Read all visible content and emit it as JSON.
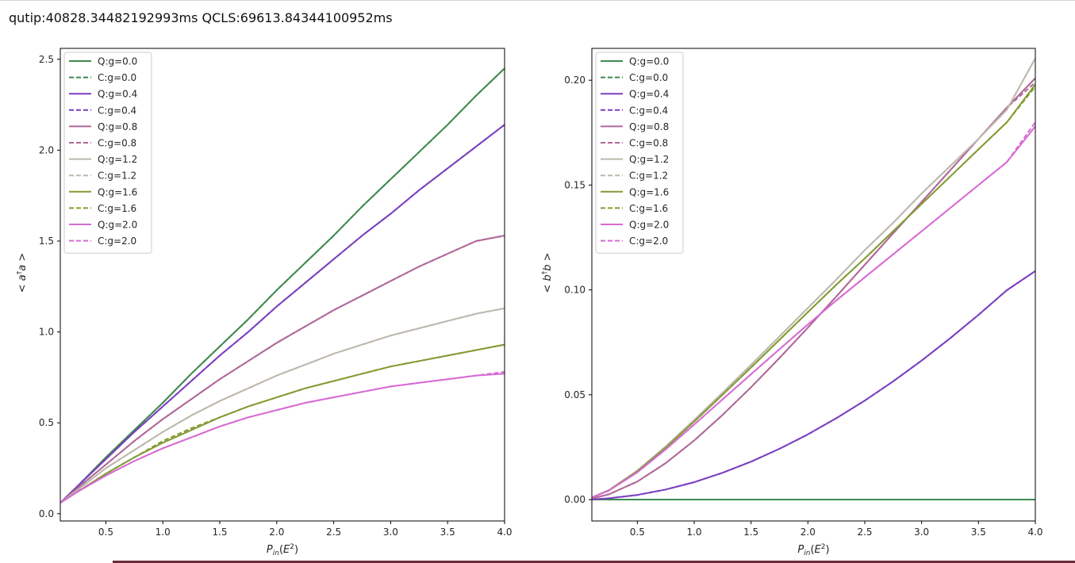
{
  "timing_text": "qutip:40828.34482192993ms  QCLS:69613.84344100952ms",
  "colors": {
    "g0": "#3f8a4f",
    "g04": "#7b3fc0",
    "g08": "#b06797",
    "g12": "#bdb8ac",
    "g16": "#839b33",
    "g20": "#d76bd3"
  },
  "chart_data": [
    {
      "type": "line",
      "xlabel": "P_in(E^2)",
      "ylabel": "<a†a>",
      "xlim": [
        0.1,
        4.0
      ],
      "ylim": [
        -0.04,
        2.56
      ],
      "xticks": [
        "0.5",
        "1.0",
        "1.5",
        "2.0",
        "2.5",
        "3.0",
        "3.5",
        "4.0"
      ],
      "xtick_values": [
        0.5,
        1.0,
        1.5,
        2.0,
        2.5,
        3.0,
        3.5,
        4.0
      ],
      "yticks": [
        "0.0",
        "0.5",
        "1.0",
        "1.5",
        "2.0",
        "2.5"
      ],
      "ytick_values": [
        0.0,
        0.5,
        1.0,
        1.5,
        2.0,
        2.5
      ],
      "legend_position": "top-left",
      "x": [
        0.1,
        0.25,
        0.5,
        0.75,
        1.0,
        1.25,
        1.5,
        1.75,
        2.0,
        2.25,
        2.5,
        2.75,
        3.0,
        3.25,
        3.5,
        3.75,
        4.0
      ],
      "series": [
        {
          "name": "Q:g=0.0",
          "style": "solid",
          "color_key": "g0",
          "values": [
            0.06,
            0.15,
            0.31,
            0.46,
            0.61,
            0.77,
            0.92,
            1.07,
            1.23,
            1.38,
            1.53,
            1.69,
            1.84,
            1.99,
            2.14,
            2.3,
            2.45
          ]
        },
        {
          "name": "C:g=0.0",
          "style": "dashed",
          "color_key": "g0",
          "values": [
            0.06,
            0.15,
            0.31,
            0.46,
            0.61,
            0.77,
            0.92,
            1.07,
            1.23,
            1.38,
            1.53,
            1.69,
            1.84,
            1.99,
            2.14,
            2.3,
            2.45
          ]
        },
        {
          "name": "Q:g=0.4",
          "style": "solid",
          "color_key": "g04",
          "values": [
            0.06,
            0.15,
            0.3,
            0.45,
            0.59,
            0.73,
            0.87,
            1.0,
            1.14,
            1.27,
            1.4,
            1.53,
            1.65,
            1.78,
            1.9,
            2.02,
            2.14
          ]
        },
        {
          "name": "C:g=0.4",
          "style": "dashed",
          "color_key": "g04",
          "values": [
            0.06,
            0.15,
            0.3,
            0.45,
            0.59,
            0.73,
            0.87,
            1.0,
            1.14,
            1.27,
            1.4,
            1.53,
            1.65,
            1.78,
            1.9,
            2.02,
            2.14
          ]
        },
        {
          "name": "Q:g=0.8",
          "style": "solid",
          "color_key": "g08",
          "values": [
            0.06,
            0.14,
            0.27,
            0.4,
            0.52,
            0.63,
            0.74,
            0.84,
            0.94,
            1.03,
            1.12,
            1.2,
            1.28,
            1.36,
            1.43,
            1.5,
            1.53
          ]
        },
        {
          "name": "C:g=0.8",
          "style": "dashed",
          "color_key": "g08",
          "values": [
            0.06,
            0.14,
            0.27,
            0.4,
            0.52,
            0.63,
            0.74,
            0.84,
            0.94,
            1.03,
            1.12,
            1.2,
            1.28,
            1.36,
            1.43,
            1.5,
            1.53
          ]
        },
        {
          "name": "Q:g=1.2",
          "style": "solid",
          "color_key": "g12",
          "values": [
            0.06,
            0.13,
            0.25,
            0.35,
            0.45,
            0.54,
            0.62,
            0.69,
            0.76,
            0.82,
            0.88,
            0.93,
            0.98,
            1.02,
            1.06,
            1.1,
            1.13
          ]
        },
        {
          "name": "C:g=1.2",
          "style": "dashed",
          "color_key": "g12",
          "values": [
            0.06,
            0.13,
            0.25,
            0.35,
            0.45,
            0.54,
            0.62,
            0.69,
            0.76,
            0.82,
            0.88,
            0.93,
            0.98,
            1.02,
            1.06,
            1.1,
            1.13
          ]
        },
        {
          "name": "Q:g=1.6",
          "style": "solid",
          "color_key": "g16",
          "values": [
            0.06,
            0.12,
            0.22,
            0.31,
            0.39,
            0.46,
            0.53,
            0.59,
            0.64,
            0.69,
            0.73,
            0.77,
            0.81,
            0.84,
            0.87,
            0.9,
            0.93
          ]
        },
        {
          "name": "C:g=1.6",
          "style": "dashed",
          "color_key": "g16",
          "values": [
            0.06,
            0.12,
            0.22,
            0.31,
            0.4,
            0.47,
            0.53,
            0.59,
            0.64,
            0.69,
            0.73,
            0.77,
            0.81,
            0.84,
            0.87,
            0.9,
            0.93
          ]
        },
        {
          "name": "Q:g=2.0",
          "style": "solid",
          "color_key": "g20",
          "values": [
            0.06,
            0.12,
            0.21,
            0.29,
            0.36,
            0.42,
            0.48,
            0.53,
            0.57,
            0.61,
            0.64,
            0.67,
            0.7,
            0.72,
            0.74,
            0.76,
            0.77
          ]
        },
        {
          "name": "C:g=2.0",
          "style": "dashed",
          "color_key": "g20",
          "values": [
            0.06,
            0.12,
            0.21,
            0.29,
            0.36,
            0.42,
            0.48,
            0.53,
            0.57,
            0.61,
            0.64,
            0.67,
            0.7,
            0.72,
            0.74,
            0.76,
            0.78
          ]
        }
      ]
    },
    {
      "type": "line",
      "xlabel": "P_in(E^2)",
      "ylabel": "<b†b>",
      "xlim": [
        0.1,
        4.0
      ],
      "ylim": [
        -0.0102,
        0.2152
      ],
      "xticks": [
        "0.5",
        "1.0",
        "1.5",
        "2.0",
        "2.5",
        "3.0",
        "3.5",
        "4.0"
      ],
      "xtick_values": [
        0.5,
        1.0,
        1.5,
        2.0,
        2.5,
        3.0,
        3.5,
        4.0
      ],
      "yticks": [
        "0.00",
        "0.05",
        "0.10",
        "0.15",
        "0.20"
      ],
      "ytick_values": [
        0.0,
        0.05,
        0.1,
        0.15,
        0.2
      ],
      "legend_position": "top-left",
      "x": [
        0.1,
        0.25,
        0.5,
        0.75,
        1.0,
        1.25,
        1.5,
        1.75,
        2.0,
        2.25,
        2.5,
        2.75,
        3.0,
        3.25,
        3.5,
        3.75,
        4.0
      ],
      "series": [
        {
          "name": "Q:g=0.0",
          "style": "solid",
          "color_key": "g0",
          "values": [
            0,
            0,
            0,
            0,
            0,
            0,
            0,
            0,
            0,
            0,
            0,
            0,
            0,
            0,
            0,
            0,
            0
          ]
        },
        {
          "name": "C:g=0.0",
          "style": "dashed",
          "color_key": "g0",
          "values": [
            0,
            0,
            0,
            0,
            0,
            0,
            0,
            0,
            0,
            0,
            0,
            0,
            0,
            0,
            0,
            0,
            0
          ]
        },
        {
          "name": "Q:g=0.4",
          "style": "solid",
          "color_key": "g04",
          "values": [
            0.0001,
            0.0006,
            0.0022,
            0.0048,
            0.0083,
            0.0128,
            0.0181,
            0.0242,
            0.0311,
            0.0388,
            0.0472,
            0.0564,
            0.0663,
            0.0769,
            0.0881,
            0.0999,
            0.109
          ]
        },
        {
          "name": "C:g=0.4",
          "style": "dashed",
          "color_key": "g04",
          "values": [
            0.0001,
            0.0006,
            0.0022,
            0.0048,
            0.0083,
            0.0128,
            0.0181,
            0.0242,
            0.0311,
            0.0388,
            0.0472,
            0.0564,
            0.0663,
            0.0769,
            0.0881,
            0.0999,
            0.109
          ]
        },
        {
          "name": "Q:g=0.8",
          "style": "solid",
          "color_key": "g08",
          "values": [
            0.0005,
            0.0025,
            0.0086,
            0.0174,
            0.0282,
            0.0404,
            0.0536,
            0.0675,
            0.082,
            0.0969,
            0.112,
            0.127,
            0.142,
            0.157,
            0.172,
            0.187,
            0.201
          ]
        },
        {
          "name": "C:g=0.8",
          "style": "dashed",
          "color_key": "g08",
          "values": [
            0.0005,
            0.0025,
            0.0086,
            0.0174,
            0.0282,
            0.0404,
            0.0536,
            0.0675,
            0.082,
            0.0969,
            0.112,
            0.127,
            0.142,
            0.157,
            0.172,
            0.187,
            0.199
          ]
        },
        {
          "name": "Q:g=1.2",
          "style": "solid",
          "color_key": "g12",
          "values": [
            0.001,
            0.0045,
            0.0138,
            0.0254,
            0.038,
            0.051,
            0.0643,
            0.0778,
            0.0914,
            0.105,
            0.119,
            0.132,
            0.146,
            0.159,
            0.172,
            0.186,
            0.2105
          ]
        },
        {
          "name": "C:g=1.2",
          "style": "dashed",
          "color_key": "g12",
          "values": [
            0.001,
            0.0045,
            0.0138,
            0.0254,
            0.038,
            0.051,
            0.0643,
            0.0778,
            0.0914,
            0.105,
            0.119,
            0.132,
            0.146,
            0.159,
            0.172,
            0.186,
            0.2105
          ]
        },
        {
          "name": "Q:g=1.6",
          "style": "solid",
          "color_key": "g16",
          "values": [
            0.001,
            0.0044,
            0.0135,
            0.0248,
            0.0372,
            0.05,
            0.063,
            0.0762,
            0.0894,
            0.1025,
            0.115,
            0.128,
            0.141,
            0.154,
            0.167,
            0.18,
            0.198
          ]
        },
        {
          "name": "C:g=1.6",
          "style": "dashed",
          "color_key": "g16",
          "values": [
            0.001,
            0.0044,
            0.0135,
            0.0248,
            0.0372,
            0.05,
            0.063,
            0.0762,
            0.0894,
            0.1025,
            0.115,
            0.128,
            0.141,
            0.154,
            0.167,
            0.18,
            0.197
          ]
        },
        {
          "name": "Q:g=2.0",
          "style": "solid",
          "color_key": "g20",
          "values": [
            0.001,
            0.0043,
            0.013,
            0.024,
            0.0358,
            0.0478,
            0.0598,
            0.0717,
            0.0835,
            0.095,
            0.106,
            0.117,
            0.128,
            0.139,
            0.15,
            0.161,
            0.178
          ]
        },
        {
          "name": "C:g=2.0",
          "style": "dashed",
          "color_key": "g20",
          "values": [
            0.001,
            0.0043,
            0.013,
            0.024,
            0.0358,
            0.0478,
            0.0598,
            0.0717,
            0.0835,
            0.095,
            0.106,
            0.117,
            0.128,
            0.139,
            0.15,
            0.161,
            0.18
          ]
        }
      ]
    }
  ]
}
